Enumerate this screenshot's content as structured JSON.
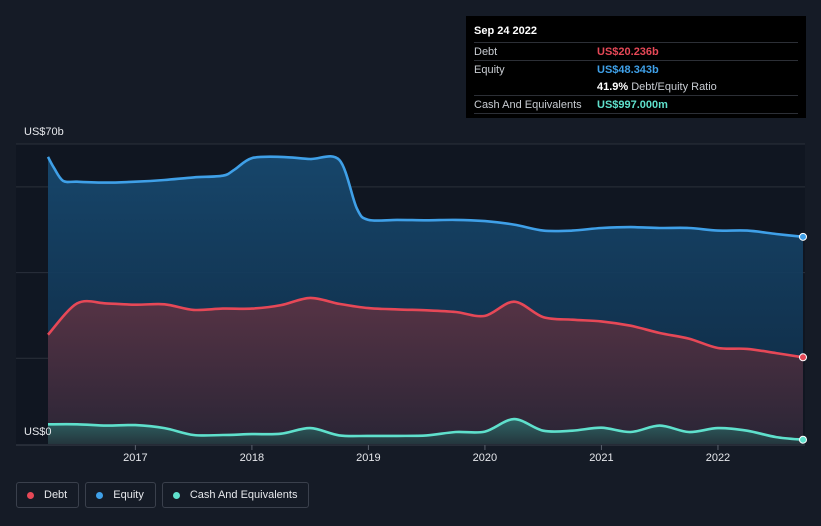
{
  "tooltip": {
    "date": "Sep 24 2022",
    "rows": [
      {
        "label": "Debt",
        "value": "US$20.236b",
        "color": "#e64857"
      },
      {
        "label": "Equity",
        "value": "US$48.343b",
        "color": "#3fa0e8"
      },
      {
        "label": "",
        "value": "41.9%",
        "sub": "Debt/Equity Ratio",
        "color": "#ffffff"
      },
      {
        "label": "Cash And Equivalents",
        "value": "US$997.000m",
        "color": "#5fe0cc"
      }
    ]
  },
  "legend": [
    {
      "label": "Debt",
      "color": "#e64857"
    },
    {
      "label": "Equity",
      "color": "#3fa0e8"
    },
    {
      "label": "Cash And Equivalents",
      "color": "#5fe0cc"
    }
  ],
  "chart_data": {
    "type": "area",
    "ylim": [
      0,
      70
    ],
    "y_tick_labels": {
      "top": "US$70b",
      "bottom": "US$0"
    },
    "x_tick_labels": [
      "2017",
      "2018",
      "2019",
      "2020",
      "2021",
      "2022"
    ],
    "x_ticks": [
      2017,
      2018,
      2019,
      2020,
      2021,
      2022
    ],
    "xlim": [
      2016.25,
      2022.73
    ],
    "grid": true,
    "legend_position": "bottom-left",
    "series": [
      {
        "name": "Equity",
        "color": "#3fa0e8",
        "points": [
          [
            2016.25,
            67.0
          ],
          [
            2016.3,
            64.5
          ],
          [
            2016.38,
            61.4
          ],
          [
            2016.5,
            61.2
          ],
          [
            2016.75,
            61.0
          ],
          [
            2017.0,
            61.2
          ],
          [
            2017.25,
            61.6
          ],
          [
            2017.5,
            62.2
          ],
          [
            2017.75,
            62.6
          ],
          [
            2017.85,
            64.0
          ],
          [
            2018.0,
            66.7
          ],
          [
            2018.25,
            67.0
          ],
          [
            2018.5,
            66.5
          ],
          [
            2018.75,
            66.3
          ],
          [
            2018.9,
            55.0
          ],
          [
            2019.0,
            52.3
          ],
          [
            2019.25,
            52.3
          ],
          [
            2019.5,
            52.2
          ],
          [
            2019.75,
            52.3
          ],
          [
            2020.0,
            52.0
          ],
          [
            2020.25,
            51.2
          ],
          [
            2020.5,
            49.8
          ],
          [
            2020.75,
            49.8
          ],
          [
            2021.0,
            50.4
          ],
          [
            2021.25,
            50.6
          ],
          [
            2021.5,
            50.4
          ],
          [
            2021.75,
            50.4
          ],
          [
            2022.0,
            49.8
          ],
          [
            2022.25,
            49.8
          ],
          [
            2022.5,
            49.0
          ],
          [
            2022.73,
            48.343
          ]
        ]
      },
      {
        "name": "Debt",
        "color": "#e64857",
        "points": [
          [
            2016.25,
            25.5
          ],
          [
            2016.5,
            32.8
          ],
          [
            2016.75,
            32.8
          ],
          [
            2017.0,
            32.5
          ],
          [
            2017.25,
            32.6
          ],
          [
            2017.5,
            31.3
          ],
          [
            2017.75,
            31.6
          ],
          [
            2018.0,
            31.6
          ],
          [
            2018.25,
            32.4
          ],
          [
            2018.5,
            34.1
          ],
          [
            2018.75,
            32.7
          ],
          [
            2019.0,
            31.7
          ],
          [
            2019.25,
            31.4
          ],
          [
            2019.5,
            31.2
          ],
          [
            2019.75,
            30.8
          ],
          [
            2020.0,
            29.9
          ],
          [
            2020.25,
            33.2
          ],
          [
            2020.5,
            29.6
          ],
          [
            2020.75,
            29.0
          ],
          [
            2021.0,
            28.6
          ],
          [
            2021.25,
            27.6
          ],
          [
            2021.5,
            25.9
          ],
          [
            2021.75,
            24.6
          ],
          [
            2022.0,
            22.4
          ],
          [
            2022.25,
            22.2
          ],
          [
            2022.5,
            21.2
          ],
          [
            2022.73,
            20.236
          ]
        ]
      },
      {
        "name": "Cash And Equivalents",
        "color": "#5fe0cc",
        "points": [
          [
            2016.25,
            4.6
          ],
          [
            2016.5,
            4.6
          ],
          [
            2016.75,
            4.3
          ],
          [
            2017.0,
            4.4
          ],
          [
            2017.25,
            3.7
          ],
          [
            2017.5,
            2.1
          ],
          [
            2017.75,
            2.1
          ],
          [
            2018.0,
            2.3
          ],
          [
            2018.25,
            2.4
          ],
          [
            2018.5,
            3.7
          ],
          [
            2018.75,
            2.0
          ],
          [
            2019.0,
            1.9
          ],
          [
            2019.25,
            1.9
          ],
          [
            2019.5,
            2.0
          ],
          [
            2019.75,
            2.8
          ],
          [
            2020.0,
            2.9
          ],
          [
            2020.25,
            5.8
          ],
          [
            2020.5,
            3.1
          ],
          [
            2020.75,
            3.1
          ],
          [
            2021.0,
            3.8
          ],
          [
            2021.25,
            2.8
          ],
          [
            2021.5,
            4.3
          ],
          [
            2021.75,
            2.8
          ],
          [
            2022.0,
            3.7
          ],
          [
            2022.25,
            3.1
          ],
          [
            2022.5,
            1.6
          ],
          [
            2022.73,
            0.997
          ]
        ]
      }
    ]
  }
}
